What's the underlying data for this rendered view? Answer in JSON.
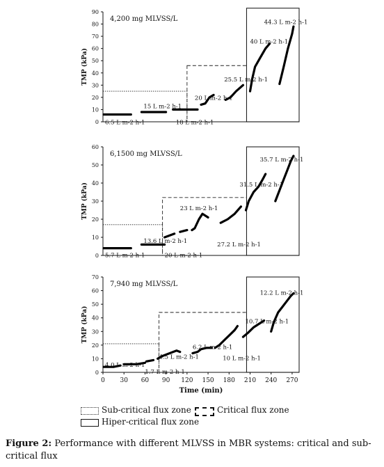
{
  "chart_data": [
    {
      "type": "line",
      "title": "4,200 mg MLVSS/L",
      "xlabel": "",
      "ylabel": "TMP (kPa)",
      "xlim": [
        0,
        280
      ],
      "ylim": [
        0,
        90
      ],
      "yticks": [
        0,
        10,
        20,
        30,
        40,
        50,
        60,
        70,
        80,
        90
      ],
      "xticks": [],
      "series": [
        {
          "values": [
            [
              1,
              6
            ],
            [
              40,
              6
            ]
          ]
        },
        {
          "values": [
            [
              55,
              8
            ],
            [
              90,
              8
            ]
          ]
        },
        {
          "values": [
            [
              100,
              10
            ],
            [
              135,
              10
            ]
          ]
        },
        {
          "values": [
            [
              140,
              14
            ],
            [
              146,
              15
            ],
            [
              152,
              20
            ],
            [
              158,
              22
            ]
          ]
        },
        {
          "values": [
            [
              175,
              18
            ],
            [
              182,
              20
            ],
            [
              190,
              25
            ],
            [
              200,
              30
            ]
          ]
        },
        {
          "values": [
            [
              210,
              25
            ],
            [
              213,
              35
            ],
            [
              217,
              45
            ],
            [
              224,
              52
            ],
            [
              232,
              60
            ],
            [
              238,
              64
            ]
          ]
        },
        {
          "values": [
            [
              252,
              31
            ],
            [
              258,
              45
            ],
            [
              264,
              60
            ],
            [
              270,
              72
            ],
            [
              272,
              78
            ]
          ]
        }
      ],
      "zones": [
        {
          "zone": "sub-critical",
          "x": [
            0,
            120
          ],
          "y_top": 25
        },
        {
          "zone": "critical",
          "x": [
            120,
            205
          ],
          "y_top": 46
        },
        {
          "zone": "hiper-critical",
          "x": [
            205,
            280
          ],
          "y_top": 93
        }
      ],
      "annotations": [
        "6.5 L m-2 h-1",
        "15 L m-2 h-1",
        "18 L m-2 h-1",
        "20 L m-2 h-1",
        "25.5 L m-2 h-1",
        "40 L m-2 h-1",
        "44.3 L m-2 h-1"
      ]
    },
    {
      "type": "line",
      "title": "6,1500 mg MLVSS/L",
      "xlabel": "",
      "ylabel": "TMP (kPa)",
      "xlim": [
        0,
        280
      ],
      "ylim": [
        0,
        60
      ],
      "yticks": [
        0,
        10,
        20,
        30,
        40,
        50,
        60
      ],
      "xticks": [],
      "series": [
        {
          "values": [
            [
              1,
              4
            ],
            [
              40,
              4
            ]
          ]
        },
        {
          "values": [
            [
              55,
              6
            ],
            [
              88,
              6
            ]
          ]
        },
        {
          "values": [
            [
              88,
              10
            ],
            [
              95,
              11
            ],
            [
              102,
              12
            ]
          ]
        },
        {
          "values": [
            [
              110,
              13
            ],
            [
              120,
              14
            ]
          ]
        },
        {
          "values": [
            [
              127,
              14
            ],
            [
              131,
              15
            ],
            [
              137,
              20
            ],
            [
              142,
              23
            ],
            [
              150,
              21
            ]
          ]
        },
        {
          "values": [
            [
              168,
              18
            ],
            [
              178,
              20
            ],
            [
              188,
              23
            ],
            [
              197,
              27
            ]
          ]
        },
        {
          "values": [
            [
              204,
              25
            ],
            [
              208,
              30
            ],
            [
              215,
              35
            ],
            [
              222,
              38
            ],
            [
              228,
              42
            ],
            [
              232,
              45
            ]
          ]
        },
        {
          "values": [
            [
              246,
              30
            ],
            [
              252,
              36
            ],
            [
              258,
              42
            ],
            [
              263,
              47
            ],
            [
              268,
              52
            ],
            [
              272,
              55
            ]
          ]
        }
      ],
      "zones": [
        {
          "zone": "sub-critical",
          "x": [
            0,
            85
          ],
          "y_top": 17
        },
        {
          "zone": "critical",
          "x": [
            85,
            205
          ],
          "y_top": 32
        },
        {
          "zone": "hiper-critical",
          "x": [
            205,
            280
          ],
          "y_top": 60
        }
      ],
      "annotations": [
        "5.7 L m-2 h-1",
        "13.6 L m-2 h-1",
        "20 L m-2 h-1",
        "23 L m-2 h-1",
        "27.2 L m-2 h-1",
        "31.5 L m-2 h-1",
        "35.7 L m-2 h-1"
      ]
    },
    {
      "type": "line",
      "title": "7,940 mg MLVSS/L",
      "xlabel": "Time (min)",
      "ylabel": "TMP (kPa)",
      "xlim": [
        0,
        280
      ],
      "ylim": [
        0,
        70
      ],
      "yticks": [
        0,
        10,
        20,
        30,
        40,
        50,
        60,
        70
      ],
      "xticks": [
        0,
        30,
        60,
        90,
        120,
        150,
        180,
        210,
        240,
        270
      ],
      "series": [
        {
          "values": [
            [
              1,
              4
            ],
            [
              15,
              4
            ],
            [
              25,
              5
            ]
          ]
        },
        {
          "values": [
            [
              30,
              6
            ],
            [
              48,
              6
            ],
            [
              60,
              7
            ]
          ]
        },
        {
          "values": [
            [
              62,
              8
            ],
            [
              72,
              9
            ]
          ]
        },
        {
          "values": [
            [
              78,
              10
            ],
            [
              85,
              12
            ],
            [
              95,
              14
            ],
            [
              105,
              16
            ],
            [
              110,
              15
            ]
          ]
        },
        {
          "values": [
            [
              128,
              14
            ],
            [
              135,
              15
            ],
            [
              140,
              17
            ],
            [
              148,
              18
            ],
            [
              155,
              18
            ]
          ]
        },
        {
          "values": [
            [
              160,
              18
            ],
            [
              166,
              20
            ],
            [
              174,
              24
            ],
            [
              182,
              28
            ],
            [
              188,
              31
            ],
            [
              192,
              34
            ]
          ]
        },
        {
          "values": [
            [
              200,
              26
            ],
            [
              207,
              29
            ],
            [
              215,
              33
            ],
            [
              224,
              36
            ],
            [
              230,
              38
            ]
          ]
        },
        {
          "values": [
            [
              240,
              30
            ],
            [
              244,
              37
            ],
            [
              250,
              44
            ],
            [
              256,
              48
            ],
            [
              262,
              52
            ],
            [
              268,
              56
            ],
            [
              272,
              58
            ]
          ]
        }
      ],
      "zones": [
        {
          "zone": "sub-critical",
          "x": [
            0,
            80
          ],
          "y_top": 21
        },
        {
          "zone": "critical",
          "x": [
            80,
            205
          ],
          "y_top": 44
        },
        {
          "zone": "hiper-critical",
          "x": [
            205,
            280
          ],
          "y_top": 70
        }
      ],
      "annotations": [
        "4.0 L m-2 h-1",
        "1.7 L m-2 h-1",
        "4.5 L m-2 h-1",
        "6.2 L m-2 h-1",
        "10 L m-2 h-1",
        "10.7 L m-2 h-1",
        "12.2 L m-2 h-1"
      ]
    }
  ],
  "legend": {
    "sub_critical": "Sub-critical flux zone",
    "critical": "Critical flux zone",
    "hiper_critical": "Hiper-critical flux zone"
  },
  "caption": {
    "label": "Figure 2:",
    "text": "Performance with different MLVSS in MBR systems: critical and sub-critical flux"
  }
}
